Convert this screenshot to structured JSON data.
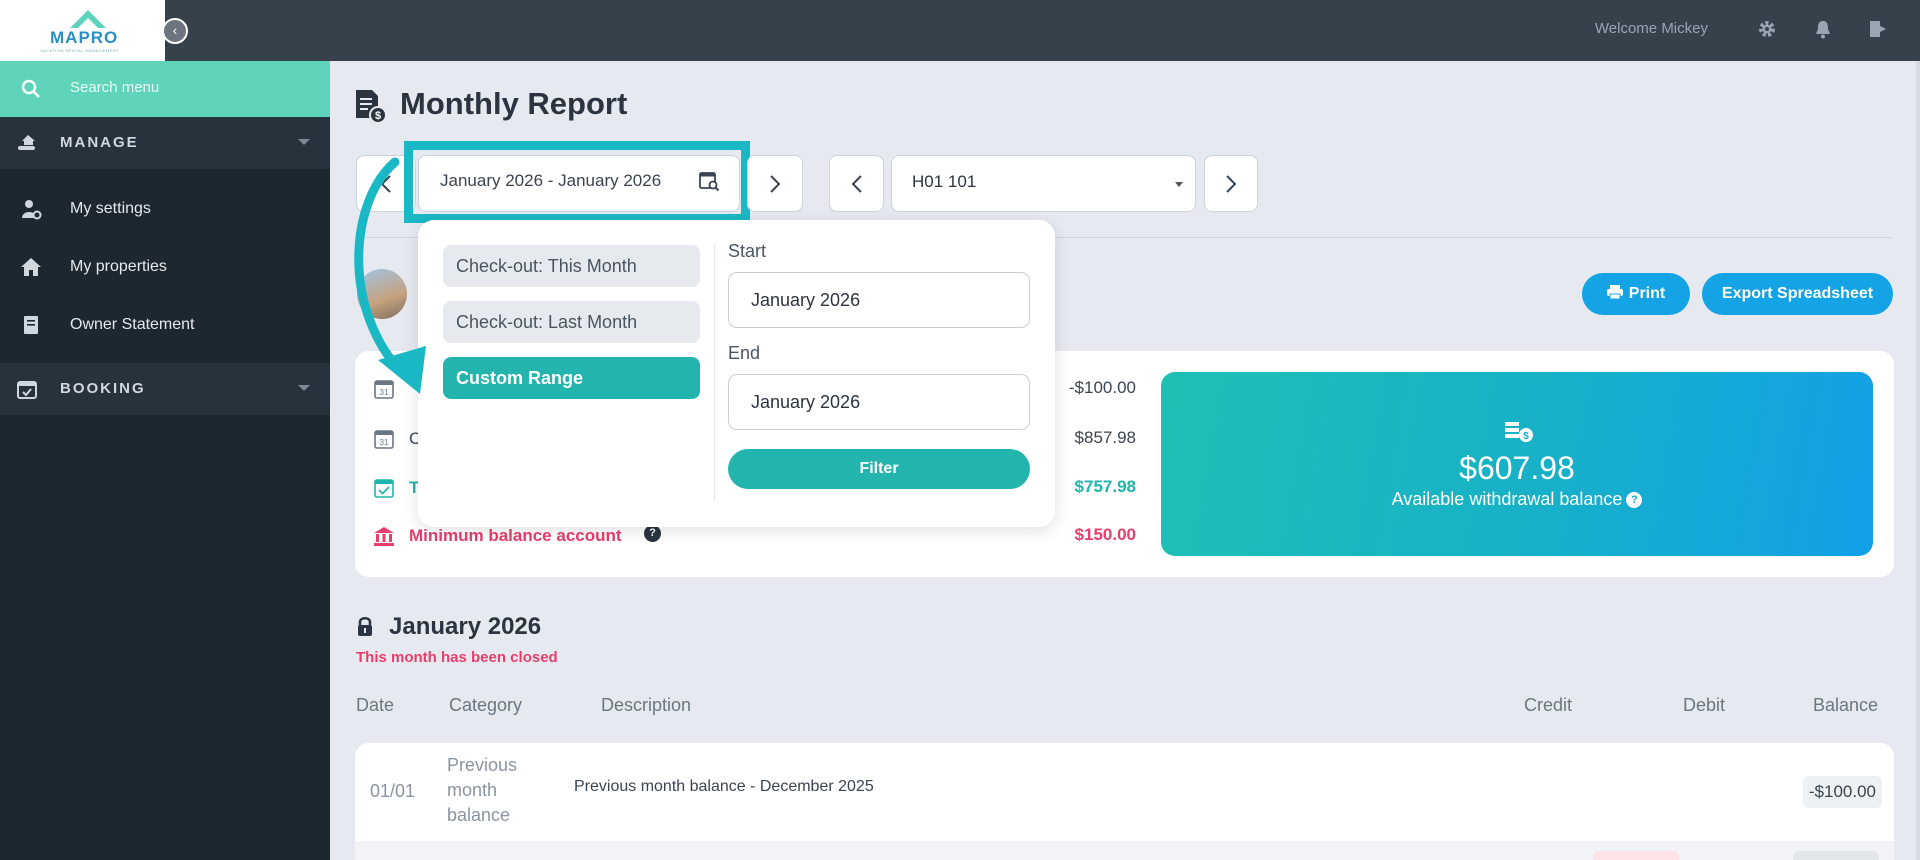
{
  "app": {
    "logo_text": "MAPRO",
    "logo_tagline": "VACATION RENTAL MANAGEMENT",
    "welcome": "Welcome Mickey"
  },
  "sidebar": {
    "search_placeholder": "Search menu",
    "sections": [
      {
        "label": "MANAGE",
        "icon": "hand-house-icon"
      },
      {
        "label": "BOOKING",
        "icon": "calendar-check-icon"
      }
    ],
    "items": [
      {
        "label": "My settings",
        "icon": "user-gear-icon"
      },
      {
        "label": "My properties",
        "icon": "home-icon"
      },
      {
        "label": "Owner Statement",
        "icon": "document-icon"
      }
    ]
  },
  "main": {
    "title": "Monthly Report",
    "date_range": "January 2026 - January 2026",
    "property": "H01 101",
    "print_label": "Print",
    "export_label": "Export Spreadsheet"
  },
  "summary": {
    "rows": [
      {
        "label": "",
        "value": "-$100.00",
        "color": "#3a4450"
      },
      {
        "label": "C",
        "value": "$857.98",
        "color": "#3a4450"
      },
      {
        "label": "T",
        "value": "$757.98",
        "color": "#1fb5ad"
      },
      {
        "label": "Minimum balance account",
        "value": "$150.00",
        "color": "#e83e6c"
      }
    ],
    "balance_amount": "$607.98",
    "balance_label": "Available withdrawal balance",
    "help_glyph": "?"
  },
  "popover": {
    "presets": [
      "Check-out: This Month",
      "Check-out: Last Month",
      "Custom Range"
    ],
    "start_label": "Start",
    "start_value": "January 2026",
    "end_label": "End",
    "end_value": "January 2026",
    "filter_label": "Filter"
  },
  "ledger": {
    "month": "January 2026",
    "closed_note": "This month has been closed",
    "columns": {
      "date": "Date",
      "category": "Category",
      "description": "Description",
      "credit": "Credit",
      "debit": "Debit",
      "balance": "Balance"
    },
    "rows": [
      {
        "date": "01/01",
        "category_line1": "Previous",
        "category_line2": "month",
        "category_line3": "balance",
        "description": "Previous month balance - December 2025",
        "balance": "-$100.00"
      }
    ]
  },
  "colors": {
    "accent": "#23b5ad",
    "brand_blue": "#14a3e4",
    "danger": "#e83e6c",
    "sidebar": "#1c2730",
    "topbar": "#37414c"
  }
}
